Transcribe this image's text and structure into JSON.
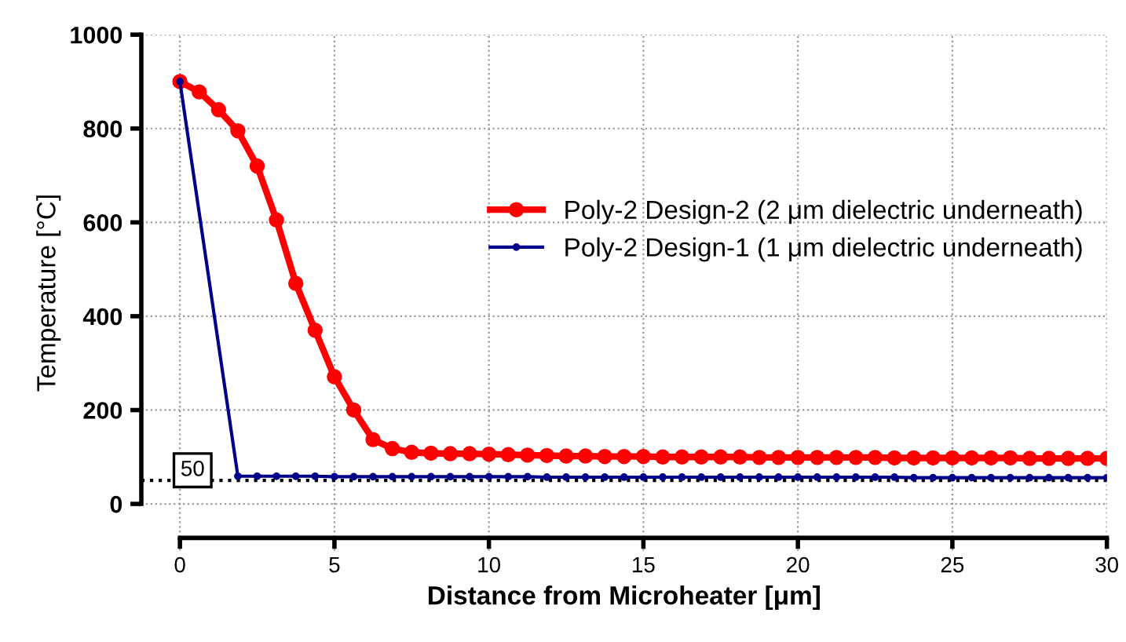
{
  "chart_data": {
    "type": "line",
    "xlabel": "Distance from Microheater [μm]",
    "ylabel": "Temperature [°C]",
    "series": [
      {
        "name": "Poly-2 Design-2 (2 μm dielectric underneath)",
        "color": "#ff0000",
        "x": [
          0,
          0.625,
          1.25,
          1.875,
          2.5,
          3.125,
          3.75,
          4.375,
          5,
          5.625,
          6.25,
          6.875,
          7.5,
          8.125,
          8.75,
          9.375,
          10,
          10.625,
          11.25,
          11.875,
          12.5,
          13.125,
          13.75,
          14.375,
          15,
          15.625,
          16.25,
          16.875,
          17.5,
          18.125,
          18.75,
          19.375,
          20,
          20.625,
          21.25,
          21.875,
          22.5,
          23.125,
          23.75,
          24.375,
          25,
          25.625,
          26.25,
          26.875,
          27.5,
          28.125,
          28.75,
          29.375,
          30
        ],
        "values": [
          900,
          878,
          840,
          795,
          720,
          605,
          470,
          370,
          271,
          200,
          137,
          118,
          110,
          108,
          107,
          107,
          106,
          105,
          104,
          103,
          102,
          102,
          101,
          101,
          101,
          100,
          100,
          100,
          100,
          100,
          99,
          99,
          99,
          99,
          99,
          99,
          99,
          98,
          98,
          98,
          98,
          98,
          98,
          98,
          97,
          97,
          97,
          97,
          97
        ]
      },
      {
        "name": "Poly-2 Design-1 (1 μm dielectric underneath)",
        "color": "#00008b",
        "x": [
          0,
          1.875,
          2.5,
          3.125,
          3.75,
          4.375,
          5,
          5.625,
          6.25,
          6.875,
          7.5,
          8.125,
          8.75,
          9.375,
          10,
          10.625,
          11.25,
          11.875,
          12.5,
          13.125,
          13.75,
          14.375,
          15,
          15.625,
          16.25,
          16.875,
          17.5,
          18.125,
          18.75,
          19.375,
          20,
          20.625,
          21.25,
          21.875,
          22.5,
          23.125,
          23.75,
          24.375,
          25,
          25.625,
          26.25,
          26.875,
          27.5,
          28.125,
          28.75,
          29.375,
          30
        ],
        "values": [
          900,
          59,
          59,
          59,
          59,
          59,
          58,
          58,
          58,
          58,
          58,
          58,
          58,
          58,
          58,
          58,
          58,
          57,
          57,
          57,
          57,
          57,
          57,
          57,
          57,
          57,
          57,
          57,
          57,
          57,
          57,
          57,
          57,
          57,
          57,
          57,
          56,
          56,
          56,
          56,
          56,
          56,
          56,
          56,
          56,
          56,
          56
        ]
      }
    ],
    "xlim": [
      -1.25,
      30
    ],
    "ylim": [
      -100,
      1000
    ],
    "xticks": [
      0,
      5,
      10,
      15,
      20,
      25,
      30
    ],
    "yticks": [
      0,
      200,
      400,
      600,
      800,
      1000
    ],
    "ref_lines": [
      {
        "axis": "y",
        "value": 50,
        "label": "50",
        "color": "#000000",
        "line_style": "dotted"
      }
    ],
    "grid": true,
    "legend": "right",
    "marker": "circle",
    "line_style": "solid"
  }
}
